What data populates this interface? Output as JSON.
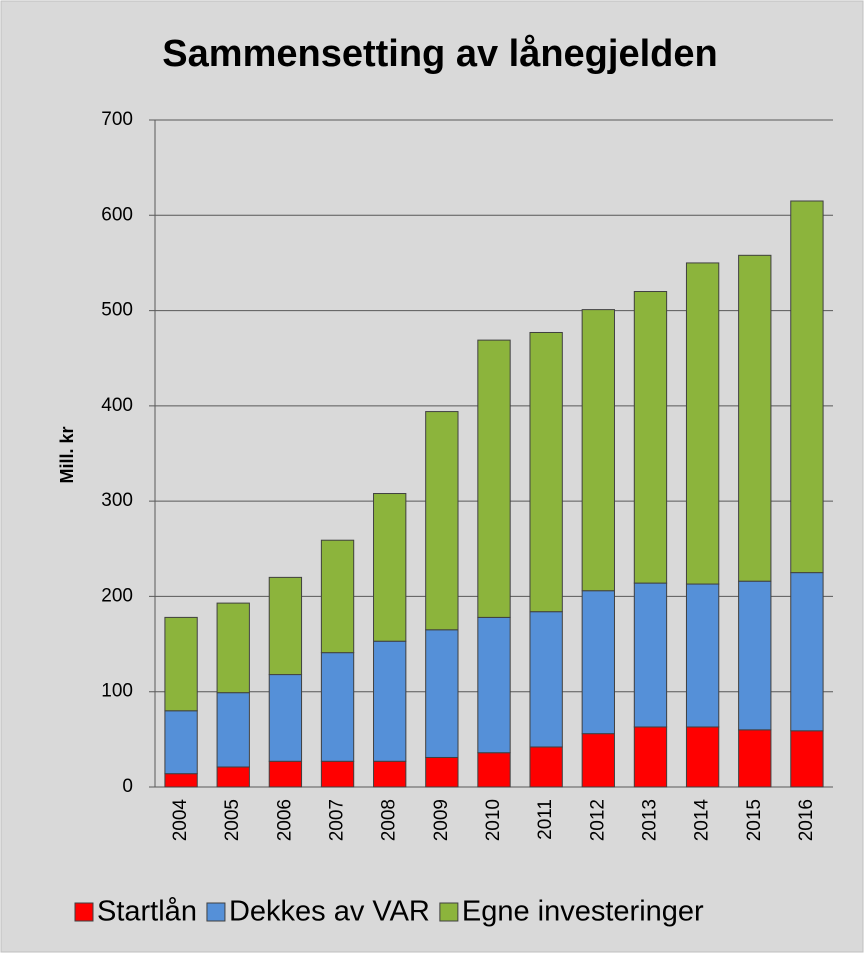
{
  "chart_data": {
    "type": "bar",
    "stacked": true,
    "title": "Sammensetting av lånegjelden",
    "y_label": "Mill. kr",
    "categories": [
      "2004",
      "2005",
      "2006",
      "2007",
      "2008",
      "2009",
      "2010",
      "2011",
      "2012",
      "2013",
      "2014",
      "2015",
      "2016"
    ],
    "series": [
      {
        "name": "Startlån",
        "color": "#ff0000",
        "values": [
          14,
          21,
          27,
          27,
          27,
          31,
          36,
          42,
          56,
          63,
          63,
          60,
          59
        ]
      },
      {
        "name": "Dekkes av VAR",
        "color": "#5590d8",
        "values": [
          66,
          78,
          91,
          114,
          126,
          134,
          142,
          142,
          150,
          151,
          150,
          156,
          166
        ]
      },
      {
        "name": "Egne investeringer",
        "color": "#8cb43c",
        "values": [
          98,
          94,
          102,
          118,
          155,
          229,
          291,
          293,
          295,
          306,
          337,
          342,
          390
        ]
      }
    ],
    "ylim": [
      0,
      700
    ],
    "yticks": [
      0,
      100,
      200,
      300,
      400,
      500,
      600,
      700
    ],
    "grid": true,
    "legend": "bottom"
  }
}
